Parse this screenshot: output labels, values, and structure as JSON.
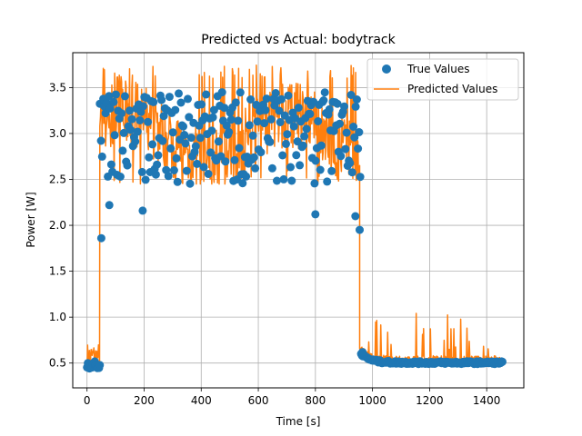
{
  "chart_data": {
    "type": "line+scatter",
    "title": "Predicted vs Actual: bodytrack",
    "xlabel": "Time [s]",
    "ylabel": "Power [W]",
    "xlim": [
      -50,
      1530
    ],
    "ylim": [
      0.23,
      3.88
    ],
    "xticks": [
      0,
      200,
      400,
      600,
      800,
      1000,
      1200,
      1400
    ],
    "yticks": [
      0.5,
      1.0,
      1.5,
      2.0,
      2.5,
      3.0,
      3.5
    ],
    "xtick_labels": [
      "0",
      "200",
      "400",
      "600",
      "800",
      "1000",
      "1200",
      "1400"
    ],
    "ytick_labels": [
      "0.5",
      "1.0",
      "1.5",
      "2.0",
      "2.5",
      "3.0",
      "3.5"
    ],
    "grid": true,
    "legend_position": "top-right",
    "series": [
      {
        "name": "True Values",
        "kind": "scatter",
        "color": "#1f77b4",
        "segments": [
          {
            "x_start": 0,
            "x_end": 45,
            "low": 0.44,
            "high": 0.52
          },
          {
            "x_start": 45,
            "x_end": 960,
            "low": 2.1,
            "high": 3.45
          },
          {
            "x_start": 960,
            "x_end": 1455,
            "low": 0.48,
            "high": 0.6
          }
        ],
        "notable_points": [
          {
            "x": 50,
            "y": 1.86
          },
          {
            "x": 955,
            "y": 1.95
          },
          {
            "x": 78,
            "y": 2.22
          },
          {
            "x": 195,
            "y": 2.16
          },
          {
            "x": 800,
            "y": 2.12
          },
          {
            "x": 940,
            "y": 2.1
          },
          {
            "x": 965,
            "y": 0.62
          }
        ]
      },
      {
        "name": "Predicted Values",
        "kind": "line",
        "color": "#ff7f0e",
        "segments": [
          {
            "x_start": 0,
            "x_end": 45,
            "low": 0.42,
            "high": 0.72
          },
          {
            "x_start": 45,
            "x_end": 955,
            "low": 2.45,
            "high": 3.75
          },
          {
            "x_start": 955,
            "x_end": 1455,
            "low": 0.47,
            "high": 1.05
          }
        ]
      }
    ]
  }
}
